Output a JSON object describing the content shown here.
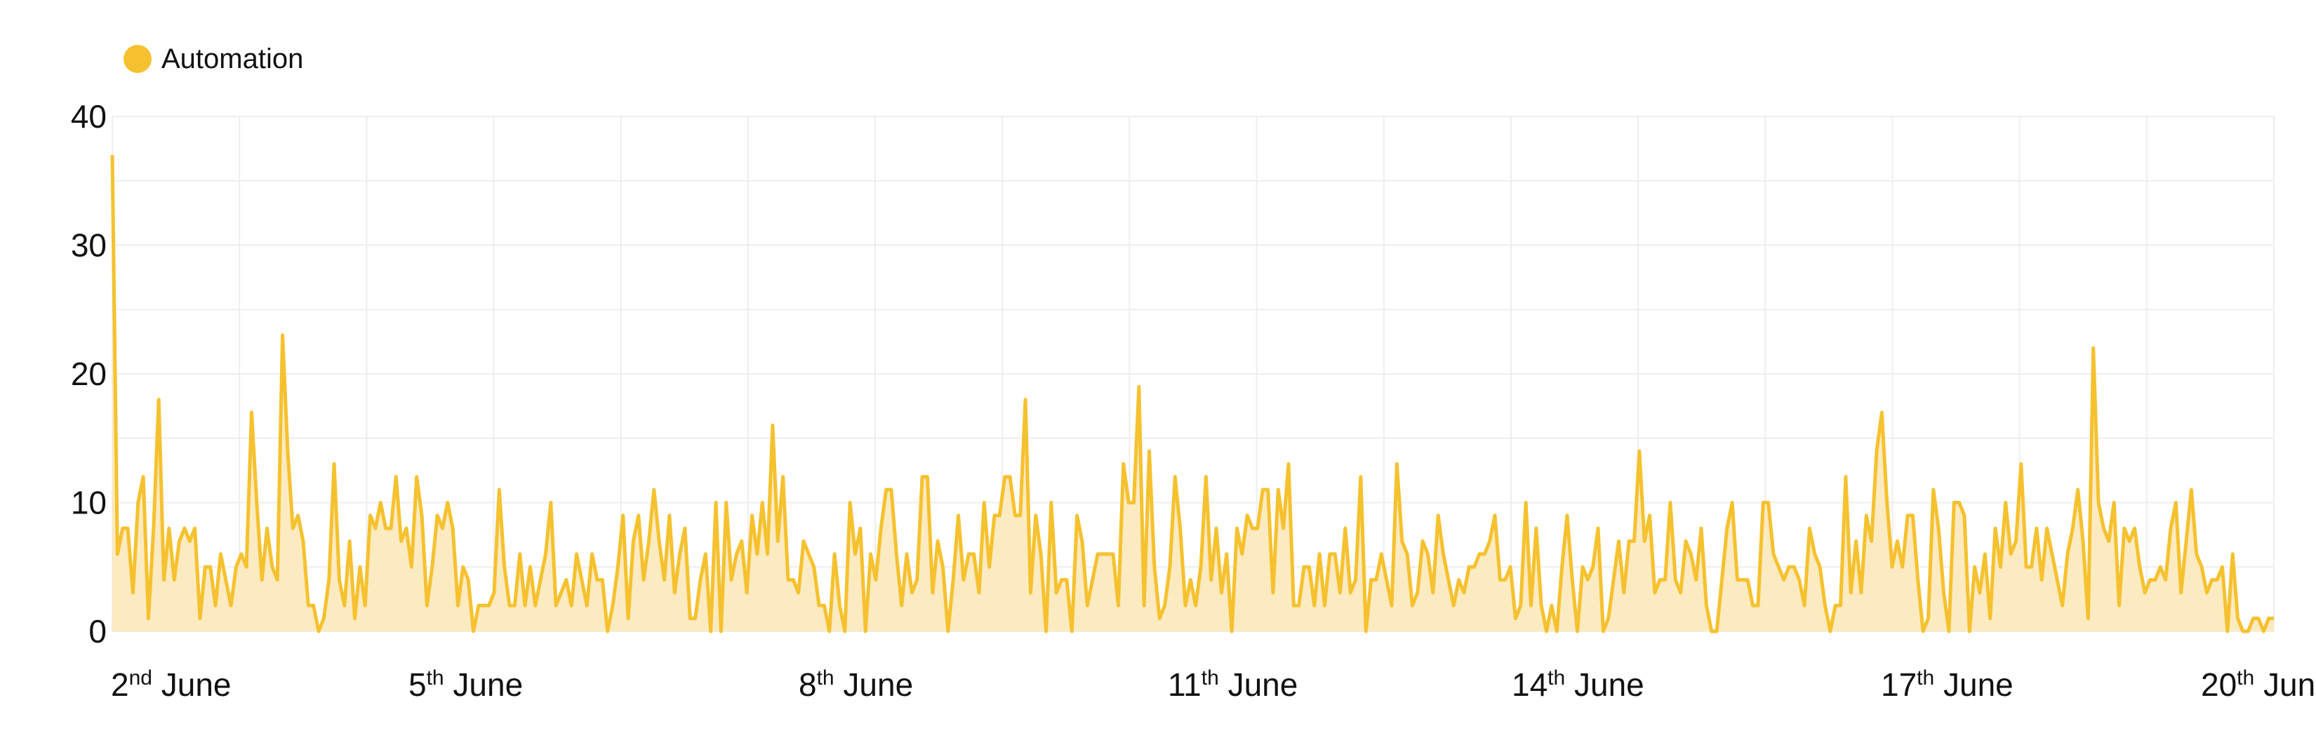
{
  "legend": {
    "label": "Automation",
    "color": "#F5C12E"
  },
  "colors": {
    "line": "#F5C12E",
    "fill": "#FCEAC0",
    "grid": "#EEEEEE"
  },
  "chart_data": {
    "type": "area",
    "series": [
      {
        "name": "Automation",
        "values": [
          37,
          6,
          8,
          8,
          3,
          10,
          12,
          1,
          8,
          18,
          4,
          8,
          4,
          7,
          8,
          7,
          8,
          1,
          5,
          5,
          2,
          6,
          4,
          2,
          5,
          6,
          5,
          17,
          10,
          4,
          8,
          5,
          4,
          23,
          14,
          8,
          9,
          7,
          2,
          2,
          0,
          1,
          4,
          13,
          4,
          2,
          7,
          1,
          5,
          2,
          9,
          8,
          10,
          8,
          8,
          12,
          7,
          8,
          5,
          12,
          9,
          2,
          5,
          9,
          8,
          10,
          8,
          2,
          5,
          4,
          0,
          2,
          2,
          2,
          3,
          11,
          5,
          2,
          2,
          6,
          2,
          5,
          2,
          4,
          6,
          10,
          2,
          3,
          4,
          2,
          6,
          4,
          2,
          6,
          4,
          4,
          0,
          2,
          5,
          9,
          1,
          7,
          9,
          4,
          7,
          11,
          7,
          4,
          9,
          3,
          6,
          8,
          1,
          1,
          4,
          6,
          0,
          10,
          0,
          10,
          4,
          6,
          7,
          3,
          9,
          6,
          10,
          6,
          16,
          7,
          12,
          4,
          4,
          3,
          7,
          6,
          5,
          2,
          2,
          0,
          6,
          2,
          0,
          10,
          6,
          8,
          0,
          6,
          4,
          8,
          11,
          11,
          6,
          2,
          6,
          3,
          4,
          12,
          12,
          3,
          7,
          5,
          0,
          4,
          9,
          4,
          6,
          6,
          3,
          10,
          5,
          9,
          9,
          12,
          12,
          9,
          9,
          18,
          3,
          9,
          6,
          0,
          10,
          3,
          4,
          4,
          0,
          9,
          7,
          2,
          4,
          6,
          6,
          6,
          6,
          2,
          13,
          10,
          10,
          19,
          2,
          14,
          5,
          1,
          2,
          5,
          12,
          8,
          2,
          4,
          2,
          5,
          12,
          4,
          8,
          3,
          6,
          0,
          8,
          6,
          9,
          8,
          8,
          11,
          11,
          3,
          11,
          8,
          13,
          2,
          2,
          5,
          5,
          2,
          6,
          2,
          6,
          6,
          3,
          8,
          3,
          4,
          12,
          0,
          4,
          4,
          6,
          4,
          2,
          13,
          7,
          6,
          2,
          3,
          7,
          6,
          3,
          9,
          6,
          4,
          2,
          4,
          3,
          5,
          5,
          6,
          6,
          7,
          9,
          4,
          4,
          5,
          1,
          2,
          10,
          2,
          8,
          2,
          0,
          2,
          0,
          5,
          9,
          4,
          0,
          5,
          4,
          5,
          8,
          0,
          1,
          4,
          7,
          3,
          7,
          7,
          14,
          7,
          9,
          3,
          4,
          4,
          10,
          4,
          3,
          7,
          6,
          4,
          8,
          2,
          0,
          0,
          4,
          8,
          10,
          4,
          4,
          4,
          2,
          2,
          10,
          10,
          6,
          5,
          4,
          5,
          5,
          4,
          2,
          8,
          6,
          5,
          2,
          0,
          2,
          2,
          12,
          3,
          7,
          3,
          9,
          7,
          14,
          17,
          10,
          5,
          7,
          5,
          9,
          9,
          4,
          0,
          1,
          11,
          8,
          3,
          0,
          10,
          10,
          9,
          0,
          5,
          3,
          6,
          1,
          8,
          5,
          10,
          6,
          7,
          13,
          5,
          5,
          8,
          4,
          8,
          6,
          4,
          2,
          6,
          8,
          11,
          7,
          1,
          22,
          10,
          8,
          7,
          10,
          2,
          8,
          7,
          8,
          5,
          3,
          4,
          4,
          5,
          4,
          8,
          10,
          3,
          7,
          11,
          6,
          5,
          3,
          4,
          4,
          5,
          0,
          6,
          1,
          0,
          0,
          1,
          1,
          0,
          1,
          1
        ]
      }
    ],
    "x_tick_labels": [
      {
        "day": "2",
        "suffix": "nd",
        "month": "June"
      },
      {
        "day": "5",
        "suffix": "th",
        "month": "June"
      },
      {
        "day": "8",
        "suffix": "th",
        "month": "June"
      },
      {
        "day": "11",
        "suffix": "th",
        "month": "June"
      },
      {
        "day": "14",
        "suffix": "th",
        "month": "June"
      },
      {
        "day": "17",
        "suffix": "th",
        "month": "June"
      },
      {
        "day": "20",
        "suffix": "th",
        "month": "June"
      }
    ],
    "y_ticks": [
      0,
      10,
      20,
      30,
      40
    ],
    "ylim": [
      0,
      40
    ],
    "grid": true,
    "legend_position": "top-left"
  }
}
